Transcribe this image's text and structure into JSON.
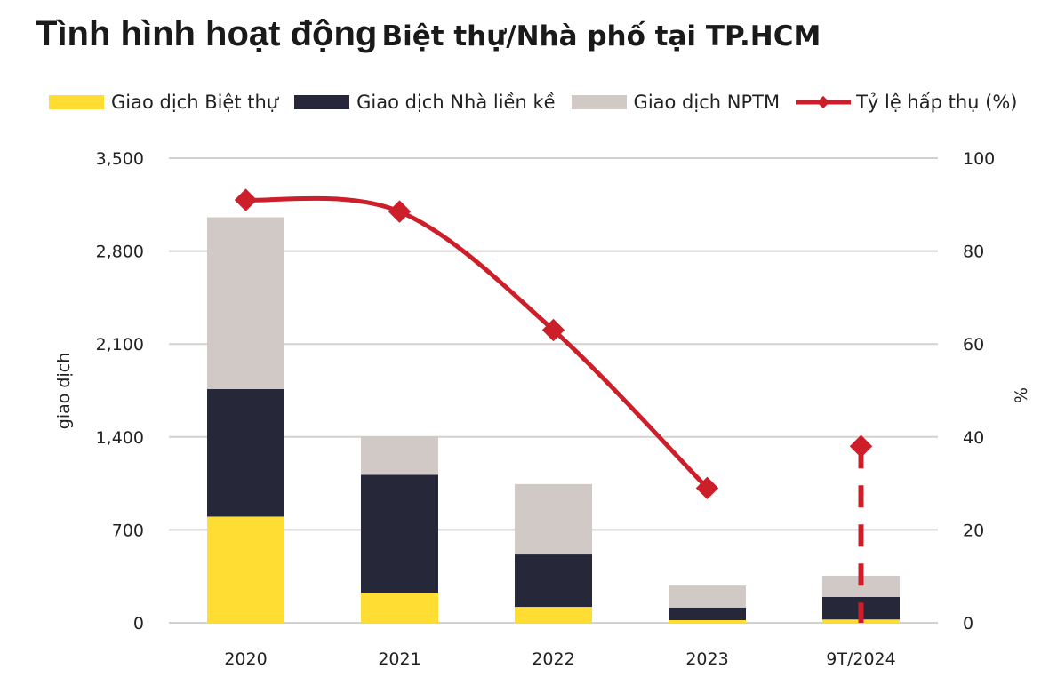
{
  "title": {
    "part1": "Tình hình hoạt động",
    "part2": "Biệt thự/Nhà phố tại TP.HCM"
  },
  "chart_data": {
    "type": "bar",
    "stacked": true,
    "categories": [
      "2020",
      "2021",
      "2022",
      "2023",
      "9T/2024"
    ],
    "series": [
      {
        "name": "Giao dịch Biệt thự",
        "type": "bar",
        "axis": "left",
        "color": "#FFDD33",
        "values": [
          800,
          225,
          120,
          20,
          25
        ]
      },
      {
        "name": "Giao dịch Nhà liền kề",
        "type": "bar",
        "axis": "left",
        "color": "#262738",
        "values": [
          960,
          890,
          395,
          95,
          170
        ]
      },
      {
        "name": "Giao dịch NPTM",
        "type": "bar",
        "axis": "left",
        "color": "#D0C9C5",
        "values": [
          1295,
          290,
          530,
          165,
          160
        ]
      },
      {
        "name": "Tỷ lệ hấp thụ (%)",
        "type": "line",
        "axis": "right",
        "color": "#CC1F2A",
        "values": [
          91,
          88.5,
          63,
          29,
          38
        ],
        "last_point_dashed_drop": true
      }
    ],
    "ylabel": "giao dịch",
    "y2label": "%",
    "ylim": [
      0,
      3500
    ],
    "yticks": [
      "0",
      "700",
      "1,400",
      "2,100",
      "2,800",
      "3,500"
    ],
    "y2lim": [
      0,
      100
    ],
    "y2ticks": [
      "0",
      "20",
      "40",
      "60",
      "80",
      "100"
    ],
    "grid": true,
    "legend": "top"
  }
}
